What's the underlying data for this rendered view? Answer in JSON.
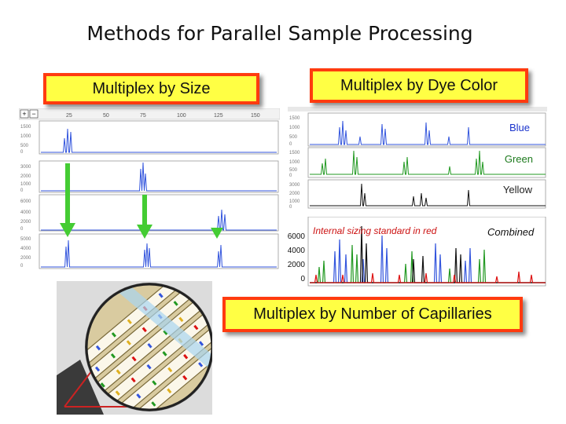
{
  "slide": {
    "title": "Methods for Parallel Sample Processing"
  },
  "banners": {
    "size": "Multiplex by Size",
    "dye": "Multiplex by Dye Color",
    "capillaries": "Multiplex by Number of Capillaries"
  },
  "dye_panel": {
    "blue_label": "Blue",
    "green_label": "Green",
    "yellow_label": "Yellow",
    "red_label": "Internal sizing standard in red",
    "combined_label": "Combined",
    "y_ticks": [
      "6000",
      "4000",
      "2000",
      "0"
    ]
  },
  "size_panel": {
    "x_ticks": [
      "25",
      "50",
      "75",
      "100",
      "125",
      "150"
    ]
  },
  "colors": {
    "banner_fill": "#ffff44",
    "banner_border": "#ff3b0f",
    "blue_trace": "#3355dd",
    "green_trace": "#229922",
    "yellow_trace": "#111111",
    "red_trace": "#dd1111",
    "arrow": "#44cc33"
  }
}
